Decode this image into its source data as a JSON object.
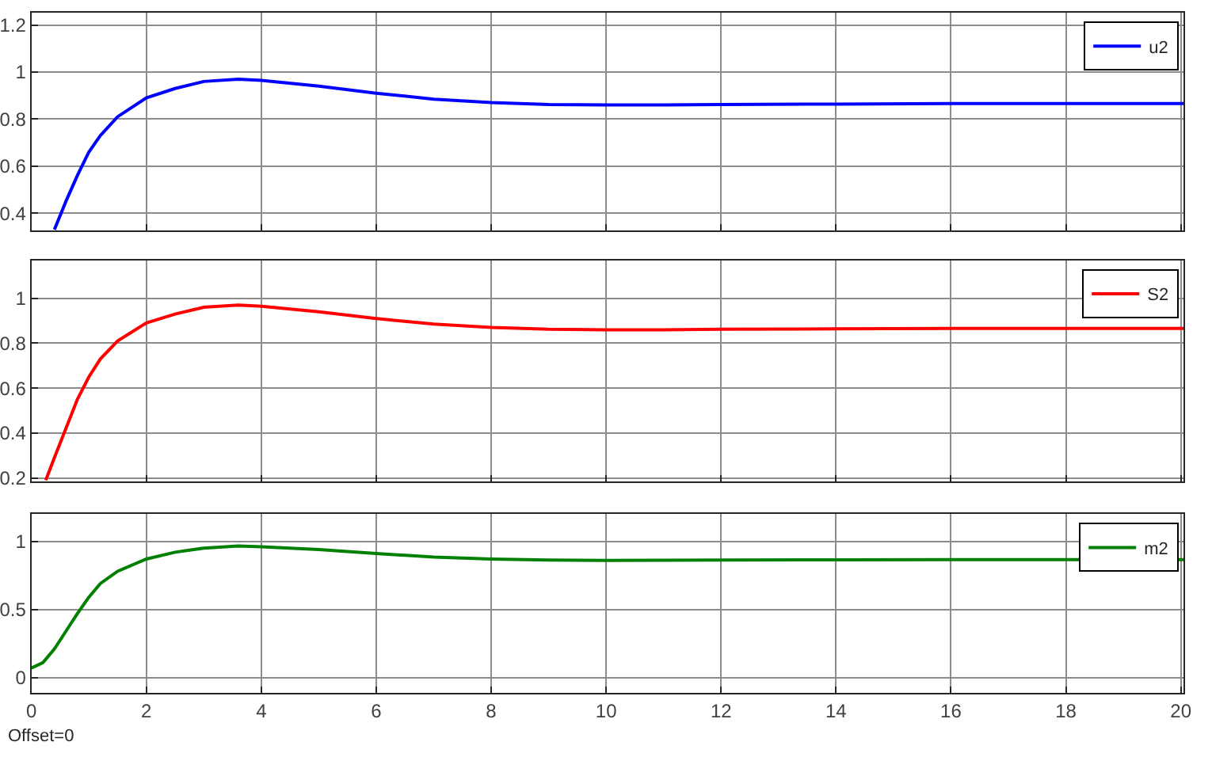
{
  "chart_data": [
    {
      "type": "line",
      "x": [
        0.4,
        0.6,
        0.8,
        1,
        1.2,
        1.5,
        2,
        2.5,
        3,
        3.6,
        4,
        5,
        6,
        7,
        8,
        9,
        10,
        11,
        12,
        14,
        16,
        18,
        20.05
      ],
      "series": [
        {
          "name": "u2",
          "color": "#0000ff",
          "values": [
            0.33,
            0.45,
            0.56,
            0.66,
            0.73,
            0.81,
            0.89,
            0.93,
            0.96,
            0.97,
            0.965,
            0.94,
            0.91,
            0.885,
            0.87,
            0.862,
            0.86,
            0.86,
            0.862,
            0.864,
            0.866,
            0.866,
            0.866
          ]
        }
      ],
      "xlim": [
        0,
        20.05
      ],
      "xticks": [
        0,
        2,
        4,
        6,
        8,
        10,
        12,
        14,
        16,
        18,
        20
      ],
      "ylim": [
        0.327,
        1.253
      ],
      "yticks": [
        0.4,
        0.6,
        0.8,
        1,
        1.2
      ],
      "grid": true,
      "legend": "top right",
      "tick_labels": "y"
    },
    {
      "type": "line",
      "x": [
        0.25,
        0.4,
        0.6,
        0.8,
        1,
        1.2,
        1.5,
        2,
        2.5,
        3,
        3.6,
        4,
        5,
        6,
        7,
        8,
        9,
        10,
        11,
        12,
        14,
        16,
        18,
        20.05
      ],
      "series": [
        {
          "name": "S2",
          "color": "#ff0000",
          "values": [
            0.19,
            0.29,
            0.42,
            0.55,
            0.65,
            0.73,
            0.81,
            0.89,
            0.93,
            0.96,
            0.97,
            0.965,
            0.94,
            0.91,
            0.885,
            0.87,
            0.862,
            0.86,
            0.86,
            0.862,
            0.864,
            0.866,
            0.866,
            0.866
          ]
        }
      ],
      "xlim": [
        0,
        20.05
      ],
      "xticks": [
        0,
        2,
        4,
        6,
        8,
        10,
        12,
        14,
        16,
        18,
        20
      ],
      "ylim": [
        0.186,
        1.17
      ],
      "yticks": [
        0.2,
        0.4,
        0.6,
        0.8,
        1
      ],
      "grid": true,
      "legend": "top right",
      "tick_labels": "y"
    },
    {
      "type": "line",
      "x": [
        0,
        0.2,
        0.4,
        0.6,
        0.8,
        1,
        1.2,
        1.5,
        2,
        2.5,
        3,
        3.6,
        4,
        5,
        6,
        7,
        8,
        9,
        10,
        12,
        14,
        16,
        18,
        20.05
      ],
      "series": [
        {
          "name": "m2",
          "color": "#008000",
          "values": [
            0.07,
            0.11,
            0.21,
            0.34,
            0.47,
            0.59,
            0.69,
            0.78,
            0.87,
            0.92,
            0.95,
            0.965,
            0.96,
            0.94,
            0.91,
            0.885,
            0.87,
            0.862,
            0.86,
            0.862,
            0.864,
            0.865,
            0.866,
            0.866
          ]
        }
      ],
      "xlim": [
        0,
        20.05
      ],
      "xticks": [
        0,
        2,
        4,
        6,
        8,
        10,
        12,
        14,
        16,
        18,
        20
      ],
      "ylim": [
        -0.11,
        1.2
      ],
      "yticks": [
        0,
        0.5,
        1
      ],
      "grid": true,
      "legend": "top right",
      "annotations": [
        "Offset=0"
      ]
    }
  ]
}
